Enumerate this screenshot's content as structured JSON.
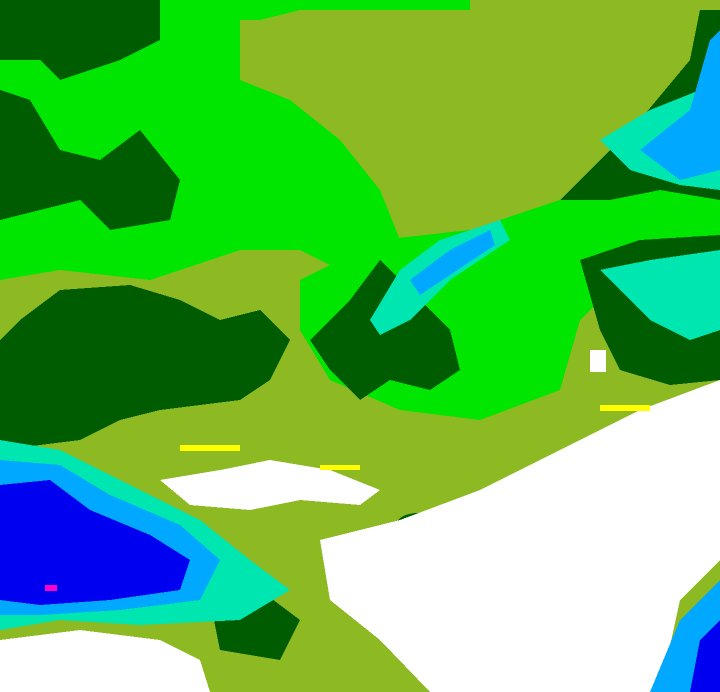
{
  "map": {
    "type": "classified-raster",
    "palette": {
      "olive": "#8db923",
      "bright_green": "#00e600",
      "dark_green": "#005c00",
      "cyan": "#00e6b0",
      "light_blue": "#00a8ff",
      "blue": "#0000f0",
      "white": "#ffffff",
      "yellow": "#ffff00",
      "magenta": "#ff00c8"
    }
  }
}
